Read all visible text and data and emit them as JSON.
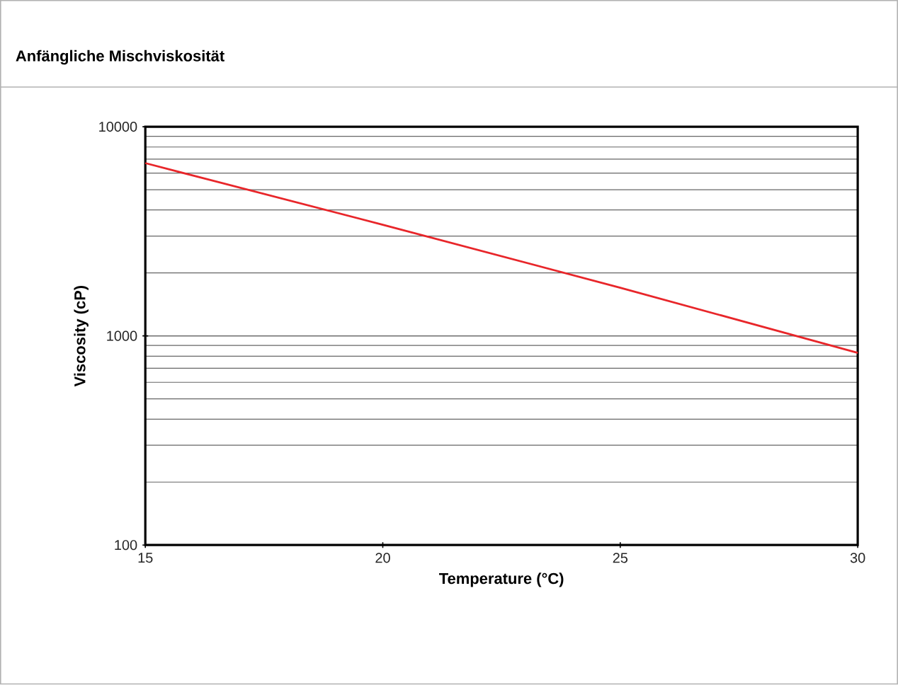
{
  "chart_data": {
    "type": "line",
    "title": "Anfängliche Mischviskosität",
    "xlabel": "Temperature (°C)",
    "ylabel": "Viscosity (cP)",
    "x": [
      15,
      20,
      25,
      30
    ],
    "series": [
      {
        "color": "#e8262a",
        "values": [
          6700,
          3400,
          1700,
          830
        ]
      }
    ],
    "xlim": [
      15,
      30
    ],
    "xticks": [
      15,
      20,
      25,
      30
    ],
    "ylim": [
      100,
      10000
    ],
    "yticks": [
      100,
      1000,
      10000
    ],
    "log": "y",
    "grid": "y",
    "marker": "none",
    "line_style": "solid"
  }
}
